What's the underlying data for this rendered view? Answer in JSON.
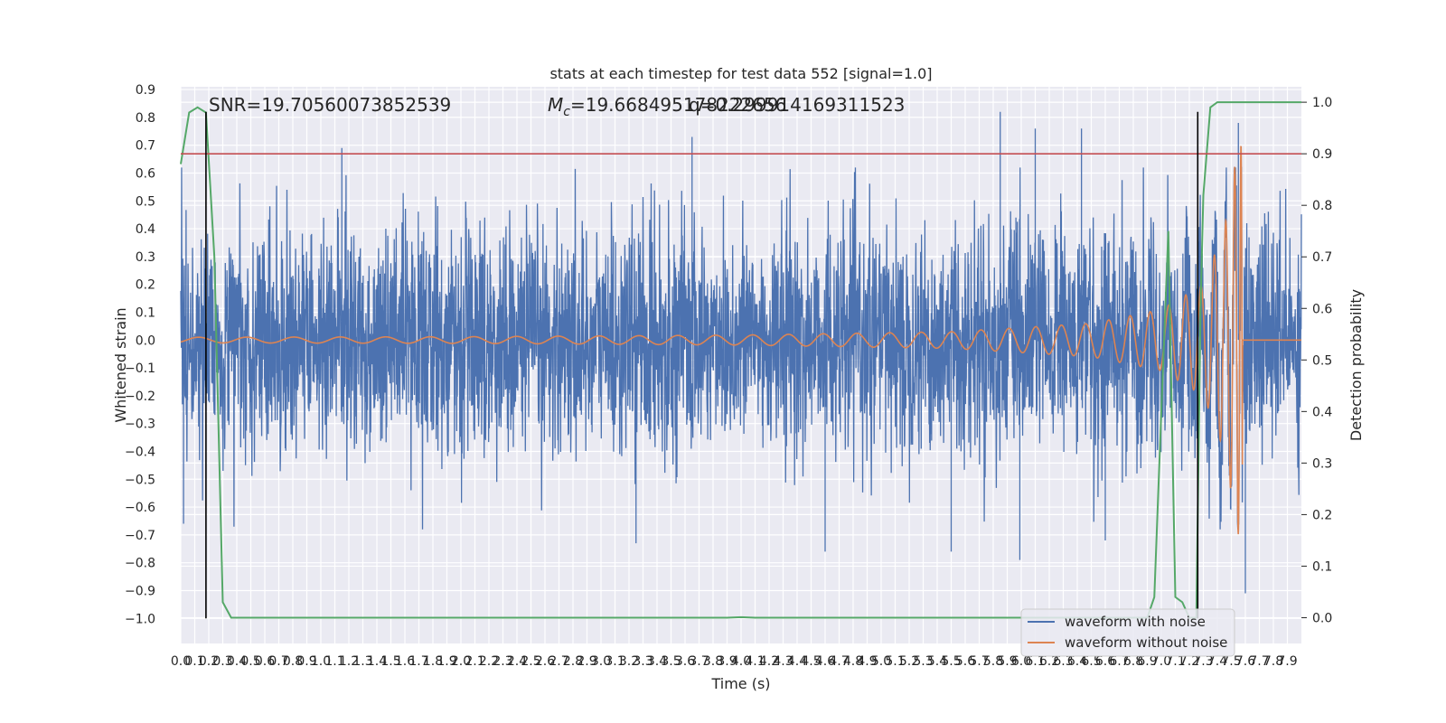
{
  "chart_data": {
    "type": "line",
    "title": "stats at each timestep for test data 552 [signal=1.0]",
    "xlabel": "Time (s)",
    "ylabel": "Whitened strain",
    "ylabel_right": "Detection probability",
    "xlim": [
      0.0,
      8.0
    ],
    "ylim": [
      -1.09,
      0.91
    ],
    "ylim_right": [
      -0.05,
      1.03
    ],
    "x_ticks": [
      "0.0",
      "0.1",
      "0.2",
      "0.3",
      "0.4",
      "0.5",
      "0.6",
      "0.7",
      "0.8",
      "0.9",
      "1.0",
      "1.1",
      "1.2",
      "1.3",
      "1.4",
      "1.5",
      "1.6",
      "1.7",
      "1.8",
      "1.9",
      "2.0",
      "2.1",
      "2.2",
      "2.3",
      "2.4",
      "2.5",
      "2.6",
      "2.7",
      "2.8",
      "2.9",
      "3.0",
      "3.1",
      "3.2",
      "3.3",
      "3.4",
      "3.5",
      "3.6",
      "3.7",
      "3.8",
      "3.9",
      "4.0",
      "4.1",
      "4.2",
      "4.3",
      "4.4",
      "4.5",
      "4.6",
      "4.7",
      "4.8",
      "4.9",
      "5.0",
      "5.1",
      "5.2",
      "5.3",
      "5.4",
      "5.5",
      "5.6",
      "5.7",
      "5.8",
      "5.9",
      "6.0",
      "6.1",
      "6.2",
      "6.3",
      "6.4",
      "6.5",
      "6.6",
      "6.7",
      "6.8",
      "6.9",
      "7.0",
      "7.1",
      "7.2",
      "7.3",
      "7.4",
      "7.5",
      "7.6",
      "7.7",
      "7.8",
      "7.9"
    ],
    "y_ticks": [
      "−1.0",
      "−0.9",
      "−0.8",
      "−0.7",
      "−0.6",
      "−0.5",
      "−0.4",
      "−0.3",
      "−0.2",
      "−0.1",
      "0.0",
      "0.1",
      "0.2",
      "0.3",
      "0.4",
      "0.5",
      "0.6",
      "0.7",
      "0.8",
      "0.9"
    ],
    "y_tick_values": [
      -1.0,
      -0.9,
      -0.8,
      -0.7,
      -0.6,
      -0.5,
      -0.4,
      -0.3,
      -0.2,
      -0.1,
      0.0,
      0.1,
      0.2,
      0.3,
      0.4,
      0.5,
      0.6,
      0.7,
      0.8,
      0.9
    ],
    "y_right_ticks": [
      "0.0",
      "0.1",
      "0.2",
      "0.3",
      "0.4",
      "0.5",
      "0.6",
      "0.7",
      "0.8",
      "0.9",
      "1.0"
    ],
    "y_right_tick_values": [
      0.0,
      0.1,
      0.2,
      0.3,
      0.4,
      0.5,
      0.6,
      0.7,
      0.8,
      0.9,
      1.0
    ],
    "annotations": {
      "snr": "SNR=19.70560073852539",
      "mc_prefix": "M",
      "mc_sub": "c",
      "mc_value": "=19.668495178222656",
      "q_text": "q=0.299914169311523"
    },
    "threshold": {
      "value": 0.9,
      "axis": "right",
      "color": "#c44e52"
    },
    "markers": {
      "x": [
        0.18,
        7.26
      ],
      "y_range": [
        -1.0,
        0.82
      ],
      "color": "#000000"
    },
    "grid": true,
    "legend": {
      "placement": "lower-right",
      "entries": [
        "waveform with noise",
        "waveform without noise"
      ]
    },
    "series": [
      {
        "name": "waveform with noise",
        "color": "#4c72b0",
        "axis": "left",
        "kind": "noise",
        "envelope_sigma": 0.2,
        "peaks": [
          [
            0.02,
            -0.66
          ],
          [
            1.15,
            0.69
          ],
          [
            2.15,
            0.31
          ],
          [
            3.25,
            -0.73
          ],
          [
            3.65,
            0.73
          ],
          [
            4.6,
            -0.76
          ],
          [
            5.5,
            -0.76
          ],
          [
            5.85,
            0.82
          ],
          [
            5.99,
            -0.79
          ],
          [
            6.1,
            0.76
          ],
          [
            6.43,
            0.76
          ],
          [
            6.6,
            -0.72
          ],
          [
            7.05,
            0.37
          ],
          [
            7.55,
            0.78
          ],
          [
            7.6,
            -0.91
          ]
        ]
      },
      {
        "name": "waveform without noise",
        "color": "#dd8452",
        "axis": "left",
        "kind": "chirp",
        "t_coalescence": 7.58,
        "envelope": [
          [
            0.0,
            0.01
          ],
          [
            2.0,
            0.012
          ],
          [
            4.0,
            0.018
          ],
          [
            5.5,
            0.03
          ],
          [
            6.5,
            0.06
          ],
          [
            7.0,
            0.11
          ],
          [
            7.3,
            0.2
          ],
          [
            7.45,
            0.4
          ],
          [
            7.55,
            0.7
          ],
          [
            7.58,
            0.7
          ]
        ],
        "flat_after": 0.0
      },
      {
        "name": "",
        "color": "#55a868",
        "axis": "right",
        "kind": "probability",
        "x": [
          0.0,
          0.06,
          0.12,
          0.18,
          0.24,
          0.3,
          0.36,
          0.6,
          1.0,
          2.0,
          3.0,
          3.9,
          4.0,
          4.1,
          4.2,
          5.0,
          6.0,
          6.9,
          6.95,
          7.0,
          7.05,
          7.1,
          7.15,
          7.2,
          7.25,
          7.28,
          7.3,
          7.35,
          7.4,
          7.5,
          7.6,
          7.7,
          8.0
        ],
        "y": [
          0.88,
          0.98,
          0.99,
          0.98,
          0.7,
          0.03,
          0.0,
          0.0,
          0.0,
          0.0,
          0.0,
          0.0,
          0.001,
          0.0,
          0.0,
          0.0,
          0.0,
          0.0,
          0.04,
          0.4,
          0.75,
          0.04,
          0.03,
          0.0,
          0.0,
          0.6,
          0.82,
          0.99,
          1.0,
          1.0,
          1.0,
          1.0,
          1.0
        ]
      }
    ]
  }
}
